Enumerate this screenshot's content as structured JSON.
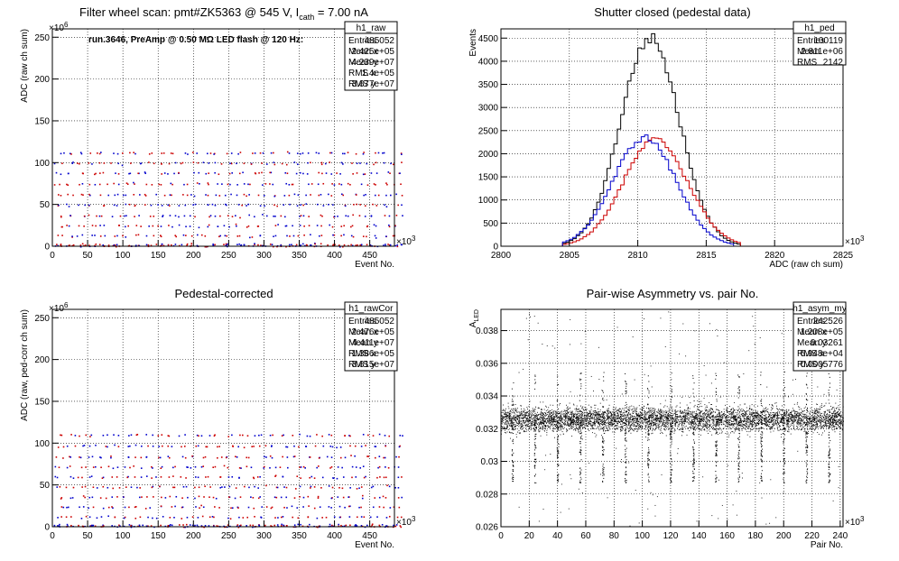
{
  "chart_data": [
    {
      "type": "scatter",
      "title": "Filter wheel scan: pmt#ZK5363 @ 545 V, I",
      "title_sub": "cath",
      "title_tail": " = 7.00 nA",
      "annotation": "run.3646, PreAmp @ 0.50 MΩ LED flash @ 120 Hz:",
      "xlabel": "Event No.",
      "ylabel": "ADC (raw ch sum)",
      "x_multiplier": "×10",
      "x_exp": "3",
      "y_multiplier": "×10",
      "y_exp": "6",
      "xlim": [
        0,
        485
      ],
      "ylim": [
        0,
        260
      ],
      "xticks": [
        "0",
        "50",
        "100",
        "150",
        "200",
        "250",
        "300",
        "350",
        "400",
        "450"
      ],
      "yticks": [
        "0",
        "50",
        "100",
        "150",
        "200",
        "250"
      ],
      "grid": true,
      "colors": {
        "blue": "#0000cc",
        "red": "#cc0000"
      },
      "levels": [
        0,
        13,
        25,
        37,
        50,
        62,
        75,
        88,
        100,
        112
      ],
      "period": 16,
      "stats": {
        "name": "h1_raw",
        "rows": [
          [
            "Entries",
            "485052"
          ],
          [
            "Mean x",
            "2.425e+05"
          ],
          [
            "Mean y",
            "4.239e+07"
          ],
          [
            "RMS x",
            "1.4e+05"
          ],
          [
            "RMS y",
            "3.677e+07"
          ]
        ]
      }
    },
    {
      "type": "histogram",
      "title": "Shutter closed (pedestal data)",
      "xlabel": "ADC (raw ch sum)",
      "ylabel": "Events",
      "x_multiplier": "×10",
      "x_exp": "3",
      "xlim": [
        2800,
        2825
      ],
      "ylim": [
        0,
        4700
      ],
      "xticks": [
        "2800",
        "2805",
        "2810",
        "2815",
        "2820",
        "2825"
      ],
      "yticks": [
        "0",
        "500",
        "1000",
        "1500",
        "2000",
        "2500",
        "3000",
        "3500",
        "4000",
        "4500"
      ],
      "grid": true,
      "series": [
        {
          "color": "#000000",
          "peak": 4500,
          "mean": 2810.9,
          "sigma": 2.15,
          "range": [
            2804.5,
            2817.5
          ]
        },
        {
          "color": "#cc0000",
          "peak": 2300,
          "mean": 2811.3,
          "sigma": 2.35,
          "range": [
            2804.5,
            2817.5
          ]
        },
        {
          "color": "#0000cc",
          "peak": 2350,
          "mean": 2810.5,
          "sigma": 2.3,
          "range": [
            2804.5,
            2817.0
          ]
        }
      ],
      "stats": {
        "name": "h1_ped",
        "rows": [
          [
            "Entries",
            "100119"
          ],
          [
            "Mean",
            "2.811e+06"
          ],
          [
            "RMS",
            "2142"
          ]
        ]
      }
    },
    {
      "type": "scatter",
      "title": "Pedestal-corrected",
      "xlabel": "Event No.",
      "ylabel": "ADC (raw, ped-corr ch sum)",
      "x_multiplier": "×10",
      "x_exp": "3",
      "y_multiplier": "×10",
      "y_exp": "6",
      "xlim": [
        0,
        485
      ],
      "ylim": [
        0,
        260
      ],
      "xticks": [
        "0",
        "50",
        "100",
        "150",
        "200",
        "250",
        "300",
        "350",
        "400",
        "450"
      ],
      "yticks": [
        "0",
        "50",
        "100",
        "150",
        "200",
        "250"
      ],
      "grid": true,
      "levels": [
        0,
        12,
        24,
        36,
        48,
        60,
        72,
        84,
        97,
        110
      ],
      "period": 16,
      "stats": {
        "name": "h1_rawCor",
        "rows": [
          [
            "Entries",
            "485052"
          ],
          [
            "Mean x",
            "2.476e+05"
          ],
          [
            "Mean y",
            "4.411e+07"
          ],
          [
            "RMS x",
            "1.386e+05"
          ],
          [
            "RMS y",
            "3.615e+07"
          ]
        ]
      }
    },
    {
      "type": "scatter",
      "title": "Pair-wise Asymmetry vs. pair No.",
      "xlabel": "Pair No.",
      "ylabel": "A",
      "ylabel_sub": "LED",
      "x_multiplier": "×10",
      "x_exp": "3",
      "xlim": [
        0,
        242
      ],
      "ylim": [
        0.026,
        0.0393
      ],
      "xticks": [
        "0",
        "20",
        "40",
        "60",
        "80",
        "100",
        "120",
        "140",
        "160",
        "180",
        "200",
        "220",
        "240"
      ],
      "yticks": [
        "0.026",
        "0.028",
        "0.03",
        "0.032",
        "0.034",
        "0.036",
        "0.038"
      ],
      "grid": true,
      "band": {
        "center": 0.0326,
        "halfwidth": 0.0004
      },
      "spike_period": 16,
      "spike_low": 0.0287,
      "spike_high": 0.0355,
      "stats": {
        "name": "h1_asym_my",
        "rows": [
          [
            "Entries",
            "242526"
          ],
          [
            "Mean x",
            "1.208e+05"
          ],
          [
            "Mean y",
            "0.03261"
          ],
          [
            "RMS x",
            "6.948e+04"
          ],
          [
            "RMS y",
            "0.0005776"
          ]
        ]
      }
    }
  ]
}
